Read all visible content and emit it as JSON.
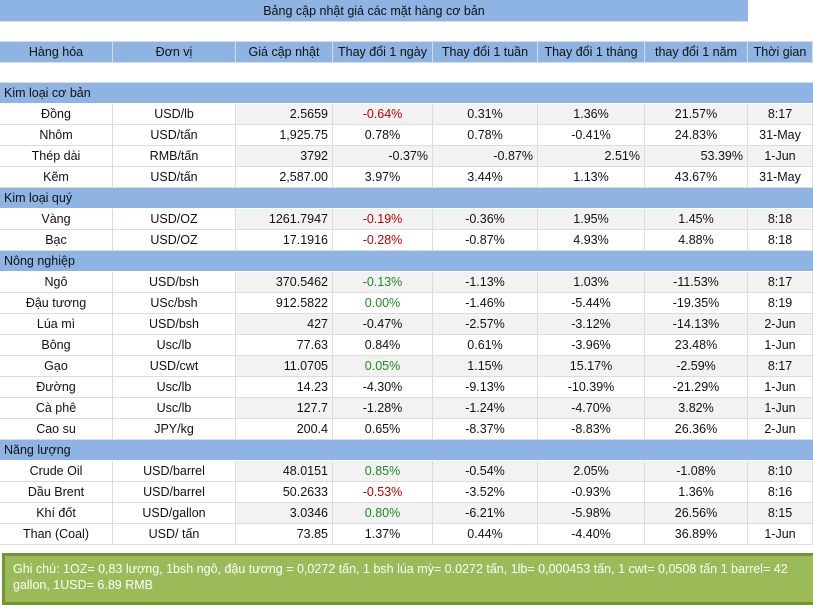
{
  "title": "Bảng cập nhật giá các mặt hàng cơ bản",
  "headers": [
    "Hàng hóa",
    "Đơn vị",
    "Giá cập nhật",
    "Thay đổi 1 ngày",
    "Thay đổi 1 tuần",
    "Thay đổi 1 tháng",
    "thay đổi 1 năm",
    "Thời gian"
  ],
  "sections": [
    {
      "name": "Kim loại cơ bản",
      "rows": [
        {
          "cells": [
            "Đồng",
            "USD/lb",
            "2.5659",
            "-0.64%",
            "0.31%",
            "1.36%",
            "21.57%",
            "8:17"
          ],
          "day_color": "red"
        },
        {
          "cells": [
            "Nhôm",
            "USD/tấn",
            "1,925.75",
            "0.78%",
            "0.78%",
            "-0.41%",
            "24.83%",
            "31-May"
          ],
          "day_color": ""
        },
        {
          "cells": [
            "Thép dài",
            "RMB/tấn",
            "3792",
            "-0.37%",
            "-0.87%",
            "2.51%",
            "53.39%",
            "1-Jun"
          ],
          "day_color": ""
        },
        {
          "cells": [
            "Kẽm",
            "USD/tấn",
            "2,587.00",
            "3.97%",
            "3.44%",
            "1.13%",
            "43.67%",
            "31-May"
          ],
          "day_color": ""
        }
      ]
    },
    {
      "name": "Kim loại quý",
      "rows": [
        {
          "cells": [
            "Vàng",
            "USD/OZ",
            "1261.7947",
            "-0.19%",
            "-0.36%",
            "1.95%",
            "1.45%",
            "8:18"
          ],
          "day_color": "red"
        },
        {
          "cells": [
            "Bạc",
            "USD/OZ",
            "17.1916",
            "-0.28%",
            "-0.87%",
            "4.93%",
            "4.88%",
            "8:18"
          ],
          "day_color": "red"
        }
      ]
    },
    {
      "name": "Nông nghiệp",
      "rows": [
        {
          "cells": [
            "Ngô",
            "USD/bsh",
            "370.5462",
            "-0.13%",
            "-1.13%",
            "1.03%",
            "-11.53%",
            "8:17"
          ],
          "day_color": "green"
        },
        {
          "cells": [
            "Đậu tương",
            "USc/bsh",
            "912.5822",
            "0.00%",
            "-1.46%",
            "-5.44%",
            "-19.35%",
            "8:19"
          ],
          "day_color": "green"
        },
        {
          "cells": [
            "Lúa mì",
            "USD/bsh",
            "427",
            "-0.47%",
            "-2.57%",
            "-3.12%",
            "-14.13%",
            "2-Jun"
          ],
          "day_color": ""
        },
        {
          "cells": [
            "Bông",
            "Usc/lb",
            "77.63",
            "0.84%",
            "0.61%",
            "-3.96%",
            "23.48%",
            "1-Jun"
          ],
          "day_color": ""
        },
        {
          "cells": [
            "Gạo",
            "USD/cwt",
            "11.0705",
            "0.05%",
            "1.15%",
            "15.17%",
            "-2.59%",
            "8:17"
          ],
          "day_color": "green"
        },
        {
          "cells": [
            "Đường",
            "Usc/lb",
            "14.23",
            "-4.30%",
            "-9.13%",
            "-10.39%",
            "-21.29%",
            "1-Jun"
          ],
          "day_color": ""
        },
        {
          "cells": [
            "Cà phê",
            "Usc/lb",
            "127.7",
            "-1.28%",
            "-1.24%",
            "-4.70%",
            "3.82%",
            "1-Jun"
          ],
          "day_color": ""
        },
        {
          "cells": [
            "Cao su",
            "JPY/kg",
            "200.4",
            "0.65%",
            "-8.37%",
            "-8.83%",
            "26.36%",
            "2-Jun"
          ],
          "day_color": ""
        }
      ]
    },
    {
      "name": "Năng lượng",
      "rows": [
        {
          "cells": [
            "Crude Oil",
            "USD/barrel",
            "48.0151",
            "0.85%",
            "-0.54%",
            "2.05%",
            "-1.08%",
            "8:10"
          ],
          "day_color": "green"
        },
        {
          "cells": [
            "Dầu Brent",
            "USD/barrel",
            "50.2633",
            "-0.53%",
            "-3.52%",
            "-0.93%",
            "1.36%",
            "8:16"
          ],
          "day_color": "red"
        },
        {
          "cells": [
            "Khí đốt",
            "USD/gallon",
            "3.0346",
            "0.80%",
            "-6.21%",
            "-5.98%",
            "26.56%",
            "8:15"
          ],
          "day_color": "green"
        },
        {
          "cells": [
            "Than (Coal)",
            "USD/ tấn",
            "73.85",
            "1.37%",
            "0.44%",
            "-4.40%",
            "36.89%",
            "1-Jun"
          ],
          "day_color": ""
        }
      ]
    }
  ],
  "note": "Ghi chú: 1OZ=  0,83 lượng,   1bsh ngô, đậu tương = 0,0272 tấn, 1 bsh lúa mỳ=   0.0272 tấn, 1lb= 0,000453 tấn, 1 cwt= 0,0508 tấn 1 barrel= 42 gallon, 1USD= 6.89 RMB"
}
